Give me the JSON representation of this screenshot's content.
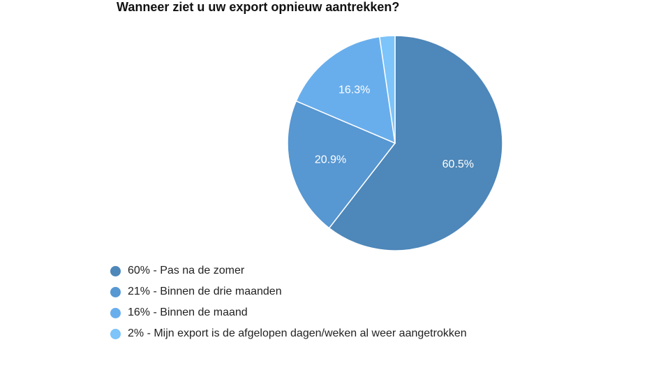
{
  "chart_data": {
    "type": "pie",
    "title": "Wanneer ziet u uw export opnieuw aantrekken?",
    "slices": [
      {
        "legend": "60% - Pas na de zomer",
        "value": 60.5,
        "label": "60.5%",
        "color": "#4e87b9"
      },
      {
        "legend": "21% - Binnen de drie maanden",
        "value": 20.9,
        "label": "20.9%",
        "color": "#5797d2"
      },
      {
        "legend": "16% - Binnen de maand",
        "value": 16.3,
        "label": "16.3%",
        "color": "#69aeec"
      },
      {
        "legend": "2% - Mijn export is de afgelopen dagen/weken al weer aangetrokken",
        "value": 2.3,
        "label": "",
        "color": "#7cc4fa"
      }
    ]
  }
}
